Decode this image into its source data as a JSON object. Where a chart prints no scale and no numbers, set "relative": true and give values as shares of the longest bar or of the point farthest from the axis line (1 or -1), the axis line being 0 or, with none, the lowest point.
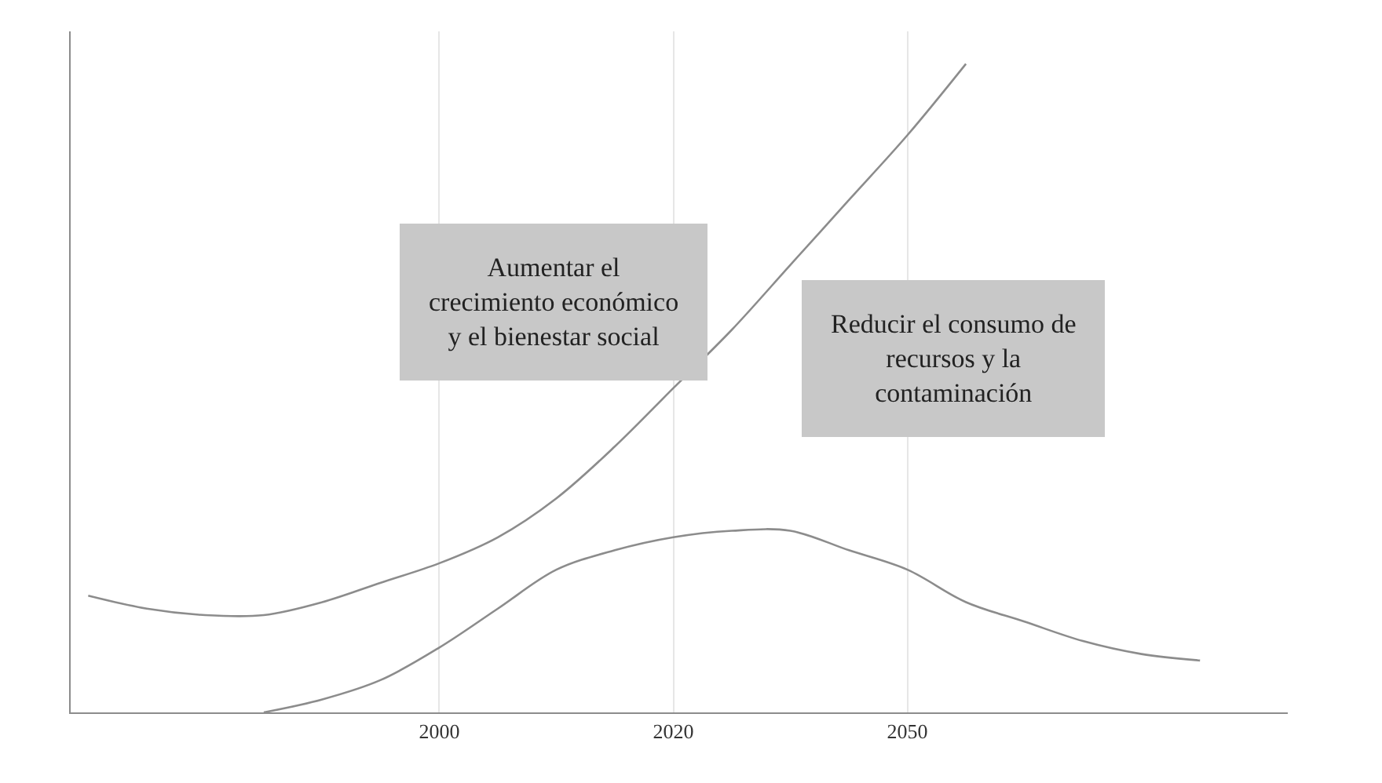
{
  "chart_data": {
    "type": "line",
    "relative": true,
    "categories": [
      null,
      null,
      null,
      null,
      null,
      null,
      "2000",
      null,
      null,
      null,
      "2020",
      null,
      null,
      null,
      "2050",
      null,
      null,
      null,
      null,
      null,
      null
    ],
    "series": [
      {
        "color": "#8c8c8c",
        "values": [
          0.18,
          0.16,
          0.15,
          0.15,
          0.17,
          0.2,
          0.23,
          0.27,
          0.33,
          0.41,
          0.5,
          0.59,
          0.69,
          0.79,
          0.89,
          1.0,
          null,
          null,
          null,
          null,
          null
        ]
      },
      {
        "color": "#8c8c8c",
        "values": [
          null,
          null,
          null,
          0.0,
          0.02,
          0.05,
          0.1,
          0.16,
          0.22,
          0.25,
          0.27,
          0.28,
          0.28,
          0.25,
          0.22,
          0.17,
          0.14,
          0.11,
          0.09,
          0.08,
          null
        ]
      }
    ],
    "annotations": [
      "Aumentar el crecimiento económico y el bienestar social",
      "Reducir el consumo de recursos y la contaminación"
    ],
    "grid": "x",
    "legend": false,
    "marker": "none",
    "line_style": "solid"
  }
}
